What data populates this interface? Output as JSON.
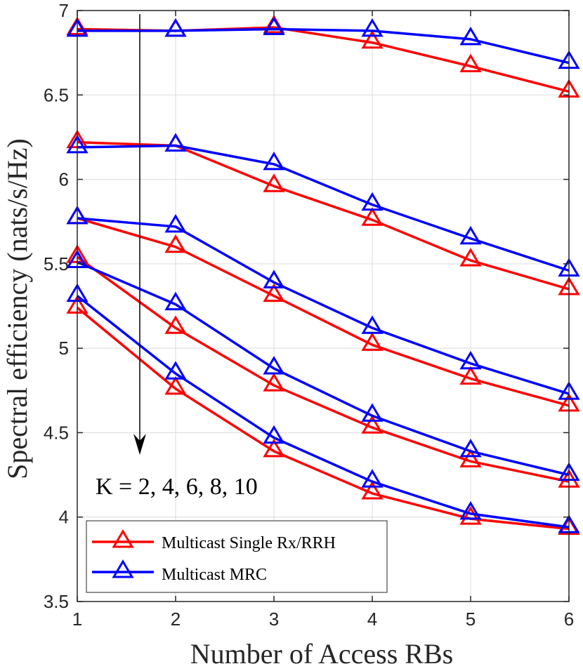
{
  "chart_data": {
    "type": "line",
    "title": "",
    "xlabel": "Number of Access RBs",
    "ylabel": "Spectral efficiency (nats/s/Hz)",
    "x": [
      1,
      2,
      3,
      4,
      5,
      6
    ],
    "xlim": [
      1,
      6
    ],
    "ylim": [
      3.5,
      7
    ],
    "xticks": [
      "1",
      "2",
      "3",
      "4",
      "5",
      "6"
    ],
    "yticks": [
      "3.5",
      "4",
      "4.5",
      "5",
      "5.5",
      "6",
      "6.5",
      "7"
    ],
    "grid": true,
    "legend_position": "bottom-left",
    "legend": [
      {
        "label": "Multicast Single Rx/RRH",
        "color": "#ff0000"
      },
      {
        "label": "Multicast MRC",
        "color": "#0000ff"
      }
    ],
    "series": [
      {
        "group": "Multicast Single Rx/RRH",
        "color": "#ff0000",
        "values": [
          6.89,
          6.88,
          6.9,
          6.81,
          6.67,
          6.52
        ]
      },
      {
        "group": "Multicast Single Rx/RRH",
        "color": "#ff0000",
        "values": [
          6.22,
          6.2,
          5.96,
          5.76,
          5.52,
          5.35
        ]
      },
      {
        "group": "Multicast Single Rx/RRH",
        "color": "#ff0000",
        "values": [
          5.77,
          5.6,
          5.31,
          5.02,
          4.82,
          4.66
        ]
      },
      {
        "group": "Multicast Single Rx/RRH",
        "color": "#ff0000",
        "values": [
          5.54,
          5.12,
          4.78,
          4.53,
          4.33,
          4.21
        ]
      },
      {
        "group": "Multicast Single Rx/RRH",
        "color": "#ff0000",
        "values": [
          5.24,
          4.76,
          4.39,
          4.14,
          3.99,
          3.93
        ]
      },
      {
        "group": "Multicast MRC",
        "color": "#0000ff",
        "values": [
          6.88,
          6.88,
          6.89,
          6.88,
          6.83,
          6.69
        ]
      },
      {
        "group": "Multicast MRC",
        "color": "#0000ff",
        "values": [
          6.19,
          6.2,
          6.09,
          5.85,
          5.65,
          5.46
        ]
      },
      {
        "group": "Multicast MRC",
        "color": "#0000ff",
        "values": [
          5.77,
          5.72,
          5.39,
          5.12,
          4.91,
          4.73
        ]
      },
      {
        "group": "Multicast MRC",
        "color": "#0000ff",
        "values": [
          5.51,
          5.26,
          4.88,
          4.6,
          4.39,
          4.25
        ]
      },
      {
        "group": "Multicast MRC",
        "color": "#0000ff",
        "values": [
          5.31,
          4.85,
          4.47,
          4.21,
          4.02,
          3.94
        ]
      }
    ],
    "annotation": {
      "text": "K = 2, 4, 6, 8, 10",
      "arrow": "downward"
    }
  }
}
